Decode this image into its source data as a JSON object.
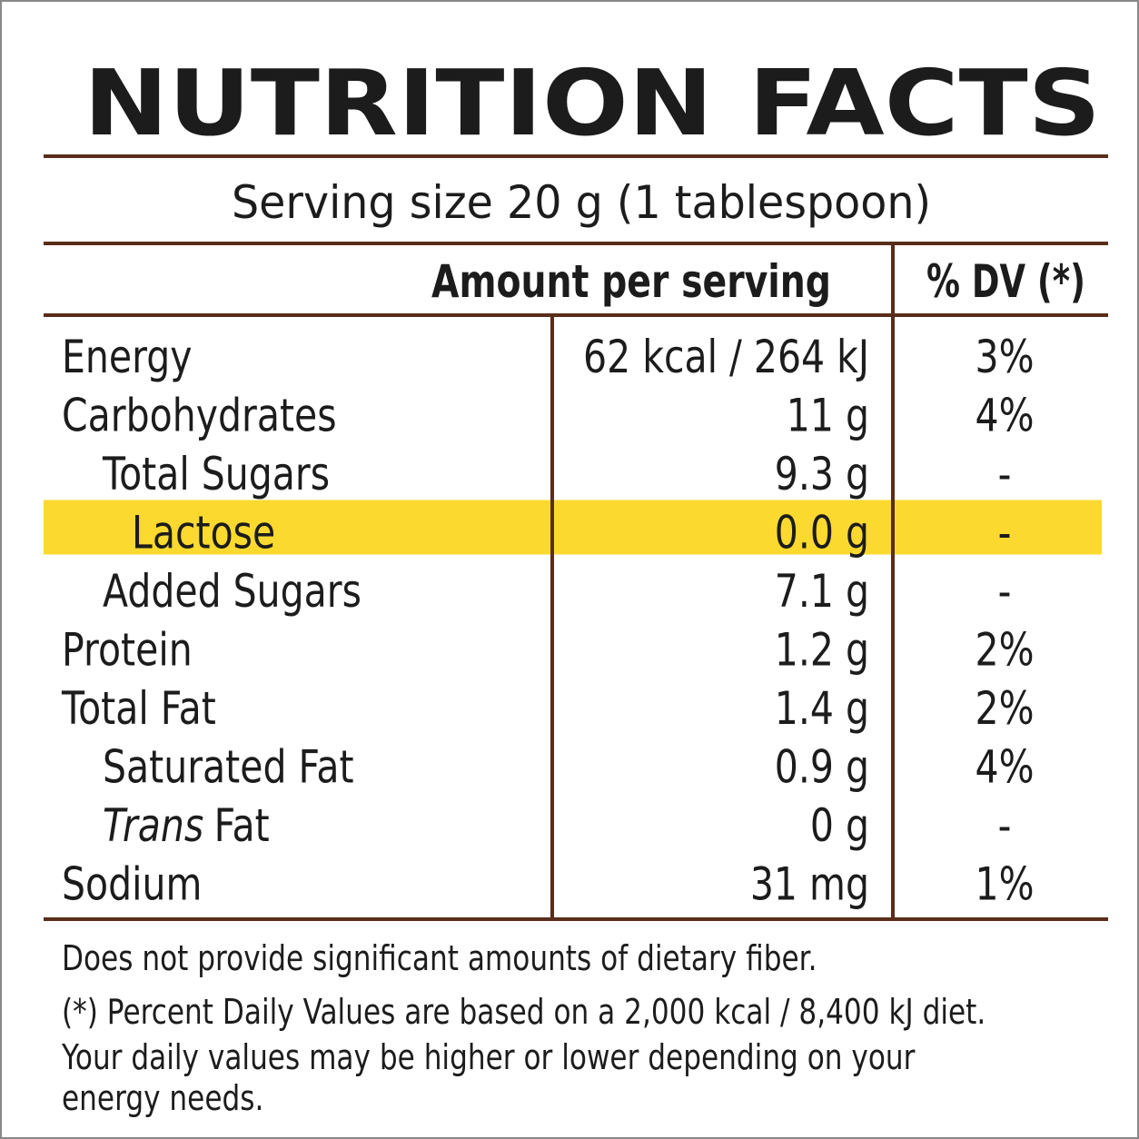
{
  "header": {
    "title": "NUTRITION FACTS",
    "serving_size": "Serving size 20 g (1 tablespoon)"
  },
  "table": {
    "columns": [
      "Amount per serving",
      "% DV (*)"
    ],
    "rows": [
      {
        "name": "Energy",
        "amount": "62 kcal / 264 kJ",
        "dv": "3%",
        "level": 0
      },
      {
        "name": "Carbohydrates",
        "amount": "11 g",
        "dv": "4%",
        "level": 0
      },
      {
        "name": "Total Sugars",
        "amount": "9.3 g",
        "dv": "-",
        "level": 1
      },
      {
        "name": "Lactose",
        "amount": "0.0 g",
        "dv": "-",
        "level": 2,
        "highlight": true
      },
      {
        "name": "Added Sugars",
        "amount": "7.1 g",
        "dv": "-",
        "level": 1
      },
      {
        "name": "Protein",
        "amount": "1.2 g",
        "dv": "2%",
        "level": 0
      },
      {
        "name": "Total Fat",
        "amount": "1.4 g",
        "dv": "2%",
        "level": 0
      },
      {
        "name": "Saturated Fat",
        "amount": "0.9 g",
        "dv": "4%",
        "level": 1
      },
      {
        "name_italic": "Trans",
        "name": "Fat",
        "amount": "0 g",
        "dv": "-",
        "level": 1
      },
      {
        "name": "Sodium",
        "amount": "31 mg",
        "dv": "1%",
        "level": 0
      }
    ]
  },
  "footer": {
    "lines": [
      "Does not provide significant amounts of dietary fiber.",
      "(*) Percent Daily Values are based on a 2,000 kcal / 8,400 kJ diet.",
      "Your daily values may be higher or lower depending on your",
      "energy needs."
    ]
  }
}
